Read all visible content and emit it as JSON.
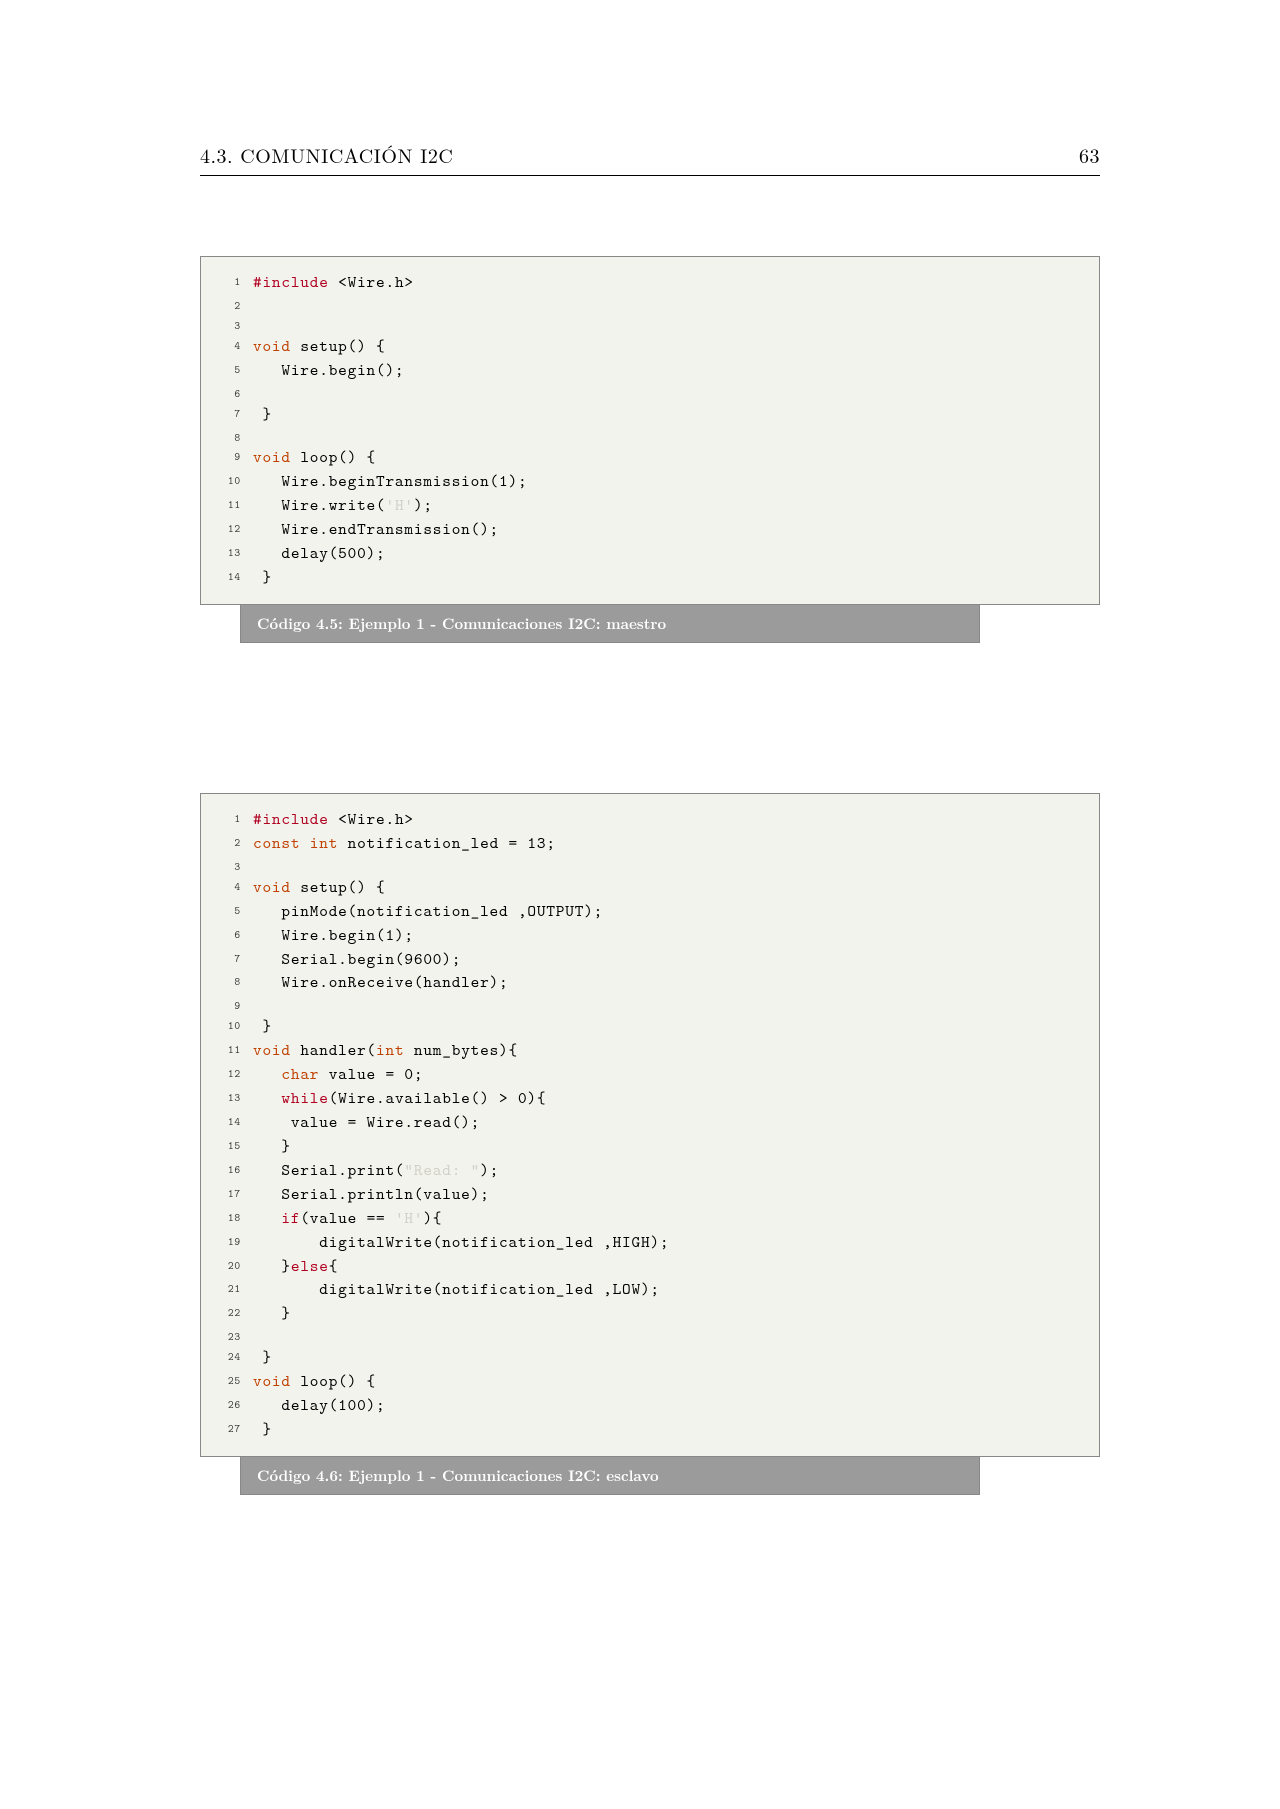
{
  "header": {
    "section": "4.3.  COMUNICACIÓN I2C",
    "page_number": "63"
  },
  "listing1": {
    "caption": "Código 4.5: Ejemplo 1 - Comunicaciones I2C: maestro",
    "lines": [
      {
        "n": "1",
        "segs": [
          {
            "t": "#include",
            "c": "kw-pre"
          },
          {
            "t": " <Wire.h>"
          }
        ]
      },
      {
        "n": "2",
        "segs": [
          {
            "t": ""
          }
        ]
      },
      {
        "n": "3",
        "segs": [
          {
            "t": ""
          }
        ]
      },
      {
        "n": "4",
        "segs": [
          {
            "t": "void",
            "c": "kw-type"
          },
          {
            "t": " setup() {"
          }
        ]
      },
      {
        "n": "5",
        "segs": [
          {
            "t": "   Wire.begin();"
          }
        ]
      },
      {
        "n": "6",
        "segs": [
          {
            "t": ""
          }
        ]
      },
      {
        "n": "7",
        "segs": [
          {
            "t": " }"
          }
        ]
      },
      {
        "n": "8",
        "segs": [
          {
            "t": ""
          }
        ]
      },
      {
        "n": "9",
        "segs": [
          {
            "t": "void",
            "c": "kw-type"
          },
          {
            "t": " loop() {"
          }
        ]
      },
      {
        "n": "10",
        "segs": [
          {
            "t": "   Wire.beginTransmission(1);"
          }
        ]
      },
      {
        "n": "11",
        "segs": [
          {
            "t": "   Wire.write("
          },
          {
            "t": "'H'",
            "c": "str"
          },
          {
            "t": ");"
          }
        ]
      },
      {
        "n": "12",
        "segs": [
          {
            "t": "   Wire.endTransmission();"
          }
        ]
      },
      {
        "n": "13",
        "segs": [
          {
            "t": "   delay(500);"
          }
        ]
      },
      {
        "n": "14",
        "segs": [
          {
            "t": " }"
          }
        ]
      }
    ]
  },
  "listing2": {
    "caption": "Código 4.6: Ejemplo 1 - Comunicaciones I2C: esclavo",
    "lines": [
      {
        "n": "1",
        "segs": [
          {
            "t": "#include",
            "c": "kw-pre"
          },
          {
            "t": " <Wire.h>"
          }
        ]
      },
      {
        "n": "2",
        "segs": [
          {
            "t": "const int",
            "c": "kw-type"
          },
          {
            "t": " notification_led = 13;"
          }
        ]
      },
      {
        "n": "3",
        "segs": [
          {
            "t": ""
          }
        ]
      },
      {
        "n": "4",
        "segs": [
          {
            "t": "void",
            "c": "kw-type"
          },
          {
            "t": " setup() {"
          }
        ]
      },
      {
        "n": "5",
        "segs": [
          {
            "t": "   pinMode(notification_led ,OUTPUT);"
          }
        ]
      },
      {
        "n": "6",
        "segs": [
          {
            "t": "   Wire.begin(1);"
          }
        ]
      },
      {
        "n": "7",
        "segs": [
          {
            "t": "   Serial.begin(9600);"
          }
        ]
      },
      {
        "n": "8",
        "segs": [
          {
            "t": "   Wire.onReceive(handler);"
          }
        ]
      },
      {
        "n": "9",
        "segs": [
          {
            "t": ""
          }
        ]
      },
      {
        "n": "10",
        "segs": [
          {
            "t": " }"
          }
        ]
      },
      {
        "n": "11",
        "segs": [
          {
            "t": "void",
            "c": "kw-type"
          },
          {
            "t": " handler("
          },
          {
            "t": "int",
            "c": "kw-type"
          },
          {
            "t": " num_bytes){"
          }
        ]
      },
      {
        "n": "12",
        "segs": [
          {
            "t": "   "
          },
          {
            "t": "char",
            "c": "kw-type"
          },
          {
            "t": " value = 0;"
          }
        ]
      },
      {
        "n": "13",
        "segs": [
          {
            "t": "   "
          },
          {
            "t": "while",
            "c": "kw-ctrl"
          },
          {
            "t": "(Wire.available() > 0){"
          }
        ]
      },
      {
        "n": "14",
        "segs": [
          {
            "t": "    value = Wire.read();"
          }
        ]
      },
      {
        "n": "15",
        "segs": [
          {
            "t": "   }"
          }
        ]
      },
      {
        "n": "16",
        "segs": [
          {
            "t": "   Serial.print("
          },
          {
            "t": "\"Read: \"",
            "c": "str"
          },
          {
            "t": ");"
          }
        ]
      },
      {
        "n": "17",
        "segs": [
          {
            "t": "   Serial.println(value);"
          }
        ]
      },
      {
        "n": "18",
        "segs": [
          {
            "t": "   "
          },
          {
            "t": "if",
            "c": "kw-ctrl"
          },
          {
            "t": "(value == "
          },
          {
            "t": "'H'",
            "c": "str"
          },
          {
            "t": "){"
          }
        ]
      },
      {
        "n": "19",
        "segs": [
          {
            "t": "       digitalWrite(notification_led ,HIGH);"
          }
        ]
      },
      {
        "n": "20",
        "segs": [
          {
            "t": "   }"
          },
          {
            "t": "else",
            "c": "kw-ctrl"
          },
          {
            "t": "{"
          }
        ]
      },
      {
        "n": "21",
        "segs": [
          {
            "t": "       digitalWrite(notification_led ,LOW);"
          }
        ]
      },
      {
        "n": "22",
        "segs": [
          {
            "t": "   }"
          }
        ]
      },
      {
        "n": "23",
        "segs": [
          {
            "t": ""
          }
        ]
      },
      {
        "n": "24",
        "segs": [
          {
            "t": " }"
          }
        ]
      },
      {
        "n": "25",
        "segs": [
          {
            "t": "void",
            "c": "kw-type"
          },
          {
            "t": " loop() {"
          }
        ]
      },
      {
        "n": "26",
        "segs": [
          {
            "t": "   delay(100);"
          }
        ]
      },
      {
        "n": "27",
        "segs": [
          {
            "t": " }"
          }
        ]
      }
    ]
  },
  "style": {
    "code_bg": "#f3f3ed",
    "caption_bg": "#9b9b9b",
    "caption_fg": "#ffffff",
    "keyword_color": "#b00020",
    "type_color": "#c04000",
    "page_bg": "#ffffff"
  }
}
